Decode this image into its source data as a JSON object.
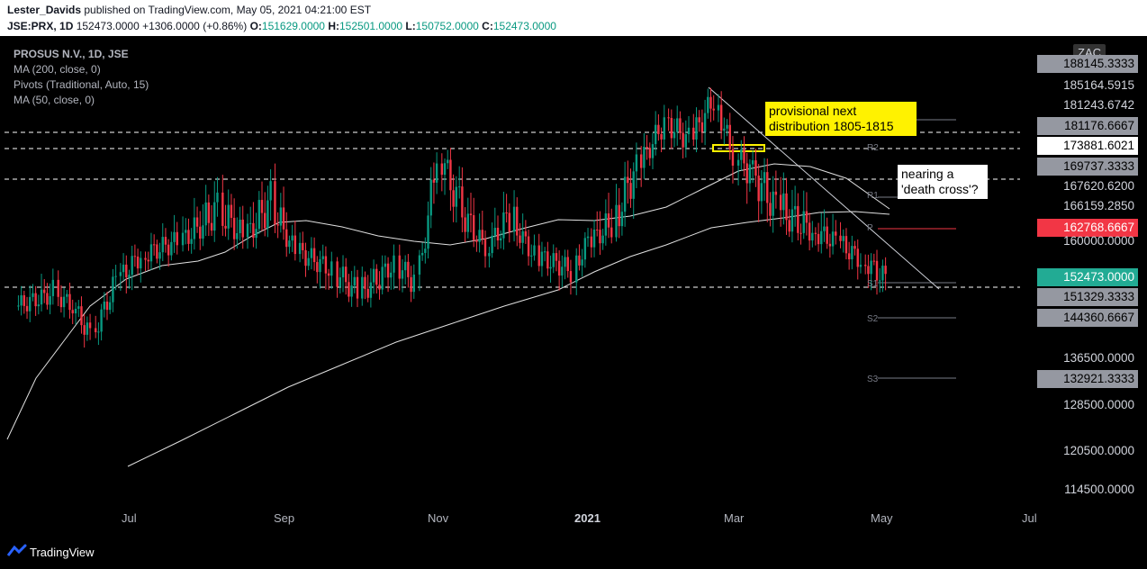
{
  "header": {
    "author": "Lester_Davids",
    "published_text": " published on TradingView.com, May 05, 2021 04:21:00 EST",
    "symbol": "JSE:PRX, 1D",
    "last_price": "152473.0000",
    "change": "+1306.0000 (+0.86%)",
    "o_label": "O:",
    "o_value": "151629.0000",
    "h_label": "H:",
    "h_value": "152501.0000",
    "l_label": "L:",
    "l_value": "150752.0000",
    "c_label": "C:",
    "c_value": "152473.0000"
  },
  "legend": {
    "title": "PROSUS N.V., 1D, JSE",
    "ma200": "MA (200, close, 0)",
    "pivots": "Pivots (Traditional, Auto, 15)",
    "ma50": "MA (50, close, 0)"
  },
  "price_axis": {
    "currency": "ZAC",
    "labels": [
      {
        "text": "188145.3333",
        "style": "gray"
      },
      {
        "text": "185164.5915",
        "style": "plain"
      },
      {
        "text": "181243.6742",
        "style": "plain"
      },
      {
        "text": "181176.6667",
        "style": "gray"
      },
      {
        "text": "173881.6021",
        "style": "white"
      },
      {
        "text": "169737.3333",
        "style": "gray"
      },
      {
        "text": "167620.6200",
        "style": "plain"
      },
      {
        "text": "166159.2850",
        "style": "plain"
      },
      {
        "text": "162768.6667",
        "style": "red"
      },
      {
        "text": "160000.0000",
        "style": "plain"
      },
      {
        "text": "152473.0000",
        "style": "teal"
      },
      {
        "text": "151329.3333",
        "style": "gray"
      },
      {
        "text": "144360.6667",
        "style": "gray"
      },
      {
        "text": "136500.0000",
        "style": "plain"
      },
      {
        "text": "132921.3333",
        "style": "gray"
      },
      {
        "text": "128500.0000",
        "style": "plain"
      },
      {
        "text": "120500.0000",
        "style": "plain"
      },
      {
        "text": "114500.0000",
        "style": "plain"
      }
    ]
  },
  "time_axis": {
    "labels": [
      "Jul",
      "Sep",
      "Nov",
      "2021",
      "Mar",
      "May",
      "Jul"
    ]
  },
  "pivots": {
    "r2": "R2",
    "r1": "R1",
    "p": "P",
    "s1": "S1",
    "s2": "S2",
    "s3": "S3"
  },
  "annotations": {
    "distribution_note": "provisional next distribution 1805-1815",
    "death_cross_note": "nearing a 'death cross'?"
  },
  "footer": {
    "brand": "TradingView"
  },
  "colors": {
    "up": "#089981",
    "down": "#f23645",
    "accent_teal": "#22ab94",
    "note_yellow": "#fff200",
    "background": "#000000"
  },
  "chart_data": {
    "type": "candlestick",
    "symbol": "JSE:PRX",
    "timeframe": "1D",
    "x_range": [
      "2020-05",
      "2021-07"
    ],
    "y_range": [
      112000,
      191000
    ],
    "last_close": 152473,
    "ohlc_last": {
      "open": 151629,
      "high": 152501,
      "low": 150752,
      "close": 152473
    },
    "horizontal_levels": [
      173881.6021,
      169737.3333,
      151329.3333
    ],
    "pivot_levels": {
      "R2": 181176.6667,
      "R1": 169737.3333,
      "P": 162768.6667,
      "S1": 151329.3333,
      "S2": 144360.6667,
      "S3": 132921.3333
    },
    "ma200_last": 166159.285,
    "ma50_last": 167620.62,
    "close_series": [
      {
        "date": "2020-05-20",
        "close": 147000
      },
      {
        "date": "2020-06-05",
        "close": 150000
      },
      {
        "date": "2020-06-12",
        "close": 147000
      },
      {
        "date": "2020-06-20",
        "close": 141000
      },
      {
        "date": "2020-06-30",
        "close": 152000
      },
      {
        "date": "2020-07-10",
        "close": 157000
      },
      {
        "date": "2020-07-25",
        "close": 160000
      },
      {
        "date": "2020-08-10",
        "close": 165000
      },
      {
        "date": "2020-08-20",
        "close": 161000
      },
      {
        "date": "2020-08-31",
        "close": 166000
      },
      {
        "date": "2020-09-10",
        "close": 158000
      },
      {
        "date": "2020-09-25",
        "close": 154000
      },
      {
        "date": "2020-10-05",
        "close": 150000
      },
      {
        "date": "2020-10-20",
        "close": 155000
      },
      {
        "date": "2020-10-28",
        "close": 152000
      },
      {
        "date": "2020-11-06",
        "close": 172000
      },
      {
        "date": "2020-11-13",
        "close": 166000
      },
      {
        "date": "2020-11-25",
        "close": 159000
      },
      {
        "date": "2020-12-05",
        "close": 164000
      },
      {
        "date": "2020-12-15",
        "close": 157000
      },
      {
        "date": "2020-12-30",
        "close": 154000
      },
      {
        "date": "2021-01-05",
        "close": 160000
      },
      {
        "date": "2021-01-15",
        "close": 163000
      },
      {
        "date": "2021-01-25",
        "close": 170000
      },
      {
        "date": "2021-02-05",
        "close": 178000
      },
      {
        "date": "2021-02-15",
        "close": 175000
      },
      {
        "date": "2021-02-25",
        "close": 182000
      },
      {
        "date": "2021-03-05",
        "close": 172000
      },
      {
        "date": "2021-03-12",
        "close": 169000
      },
      {
        "date": "2021-03-22",
        "close": 165000
      },
      {
        "date": "2021-04-05",
        "close": 162000
      },
      {
        "date": "2021-04-15",
        "close": 160000
      },
      {
        "date": "2021-04-25",
        "close": 156000
      },
      {
        "date": "2021-05-05",
        "close": 152473
      }
    ]
  }
}
